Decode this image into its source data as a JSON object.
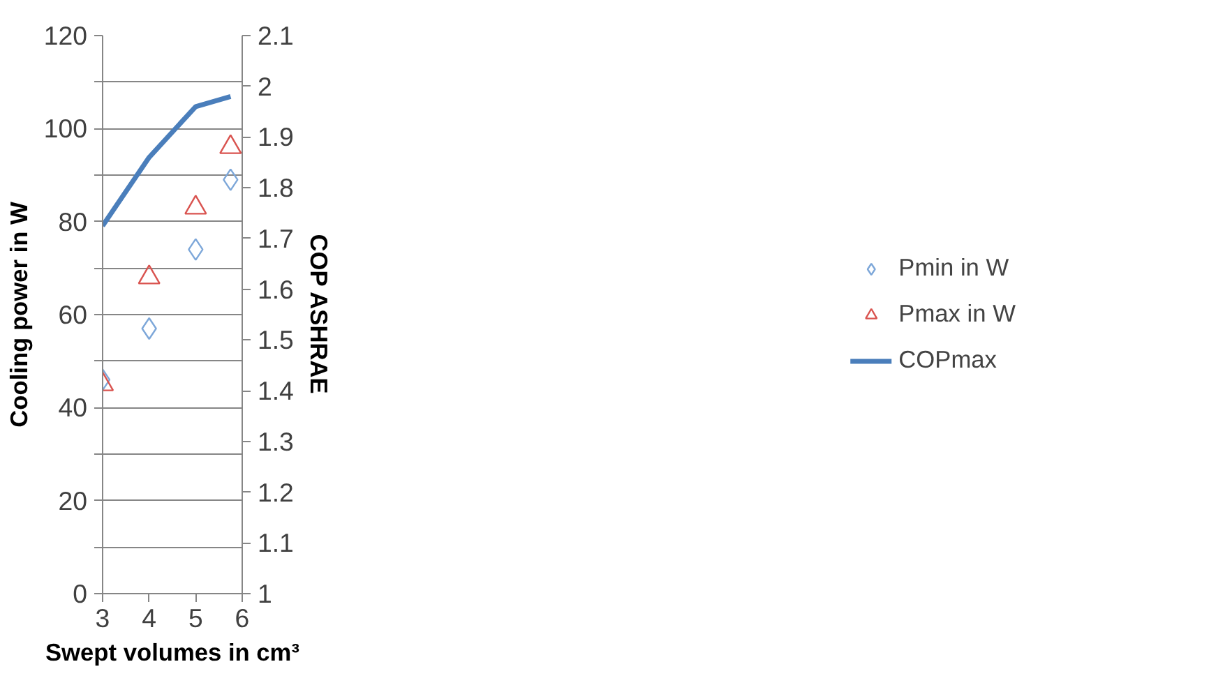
{
  "chart_data": {
    "type": "scatter",
    "xlabel": "Swept volumes in cm³",
    "ylabel": "Cooling power in W",
    "y2label": "COP ASHRAE",
    "x": [
      3,
      4,
      5,
      5.75
    ],
    "series": [
      {
        "name": "Pmin in W",
        "color": "#7da7d9",
        "marker": "diamond",
        "values": [
          46,
          57,
          74,
          89
        ]
      },
      {
        "name": "Pmax in W",
        "color": "#d9534f",
        "marker": "triangle",
        "values": [
          45,
          68,
          83,
          96
        ]
      },
      {
        "name": "COPmax",
        "type": "line",
        "axis": "y2",
        "color": "#4a7ebb",
        "marker": "none",
        "values": [
          1.725,
          1.86,
          1.96,
          1.98
        ]
      }
    ],
    "xlim": [
      3,
      6
    ],
    "xticks": [
      3,
      4,
      5,
      6
    ],
    "ylim": [
      0,
      120
    ],
    "yticks": [
      0,
      {
        "value": 10,
        "label": null
      },
      20,
      {
        "value": 30,
        "label": null
      },
      40,
      {
        "value": 50,
        "label": null
      },
      60,
      {
        "value": 70,
        "label": null
      },
      80,
      {
        "value": 90,
        "label": null
      },
      100,
      {
        "value": 110,
        "label": null
      },
      120
    ],
    "y2lim": [
      1,
      2.1
    ],
    "y2ticks": [
      1,
      1.1,
      1.2,
      1.3,
      1.4,
      1.5,
      1.6,
      1.7,
      1.8,
      1.9,
      2,
      2.1
    ],
    "grid": "y",
    "legend": "right"
  }
}
